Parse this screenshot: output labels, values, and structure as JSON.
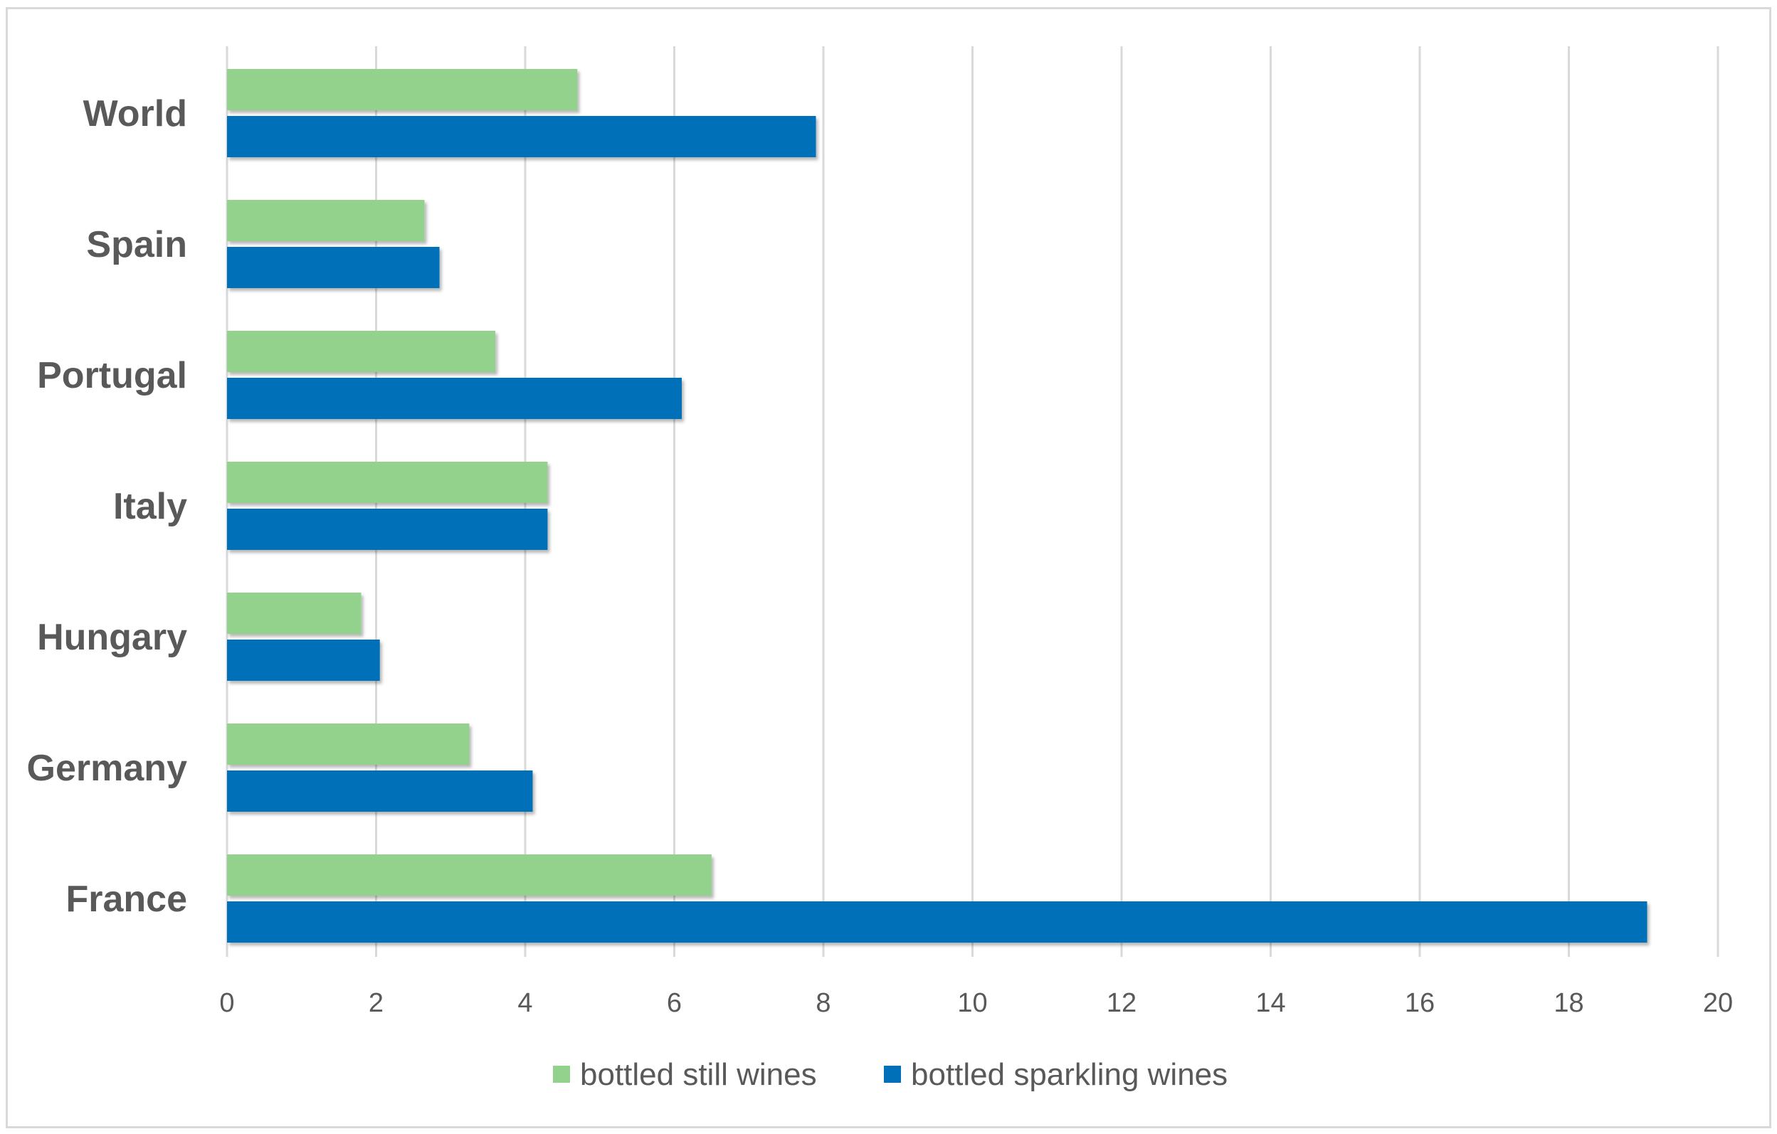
{
  "chart_data": {
    "type": "bar",
    "orientation": "horizontal",
    "categories": [
      "France",
      "Germany",
      "Hungary",
      "Italy",
      "Portugal",
      "Spain",
      "World"
    ],
    "series": [
      {
        "name": "bottled still wines",
        "color": "#92d28c",
        "values": [
          6.5,
          3.25,
          1.8,
          4.3,
          3.6,
          2.65,
          4.7
        ]
      },
      {
        "name": "bottled sparkling wines",
        "color": "#0070b8",
        "values": [
          19.05,
          4.1,
          2.05,
          4.3,
          6.1,
          2.85,
          7.9
        ]
      }
    ],
    "xlim": [
      0,
      20
    ],
    "xticks": [
      "0",
      "2",
      "4",
      "6",
      "8",
      "10",
      "12",
      "14",
      "16",
      "18",
      "20"
    ],
    "grid": "vertical",
    "legend_position": "bottom",
    "title": "",
    "xlabel": "",
    "ylabel": ""
  }
}
